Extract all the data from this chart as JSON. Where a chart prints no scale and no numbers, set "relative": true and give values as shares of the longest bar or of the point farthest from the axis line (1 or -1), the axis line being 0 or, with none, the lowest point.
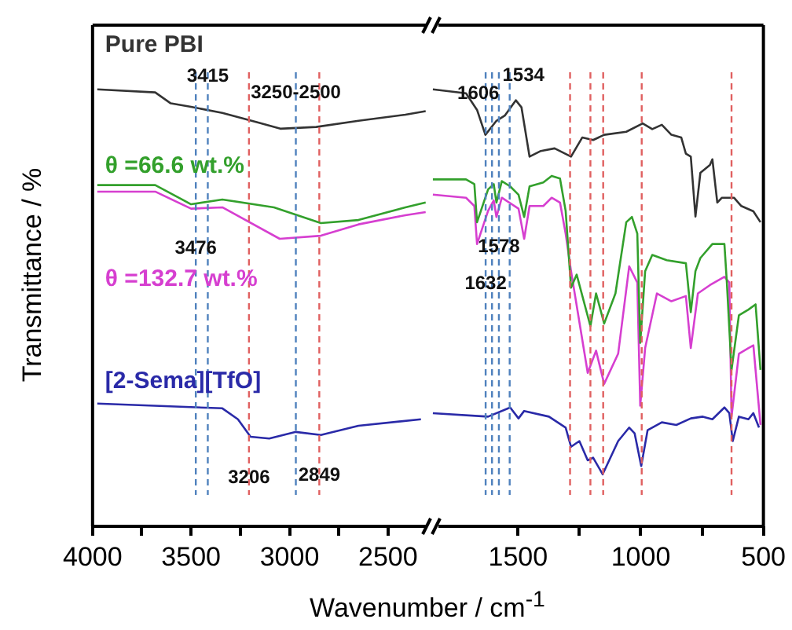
{
  "chart_data": [
    {
      "type": "line",
      "relative": true,
      "xlabel": "Wavenumber / cm$^{-1}$",
      "ylabel": "Transmittance / %",
      "xlim": [
        4000,
        2300
      ],
      "xticks": [
        4000,
        {
          "value": 3750,
          "label": null
        },
        3500,
        {
          "value": 3250,
          "label": null
        },
        3000,
        {
          "value": 2750,
          "label": null
        },
        2500
      ],
      "series": [
        {
          "name": "Pure PBI",
          "color": "#333333",
          "x": [
            3976,
            3682,
            3603,
            3500,
            3341,
            3159,
            3047,
            2865,
            2650,
            2412,
            2309
          ],
          "values": [
            1.0,
            0.993,
            0.968,
            0.96,
            0.946,
            0.924,
            0.91,
            0.914,
            0.928,
            0.942,
            0.95
          ]
        },
        {
          "name": "θ =66.6 wt.%",
          "color": "#33a02c",
          "x": [
            3976,
            3682,
            3500,
            3341,
            3079,
            2841,
            2650,
            2412,
            2309
          ],
          "values": [
            0.781,
            0.781,
            0.737,
            0.748,
            0.73,
            0.694,
            0.701,
            0.73,
            0.741
          ]
        },
        {
          "name": "θ =132.7 wt.%",
          "color": "#d63fd0",
          "x": [
            3976,
            3682,
            3500,
            3341,
            3050,
            2841,
            2650,
            2412,
            2309
          ],
          "values": [
            0.766,
            0.766,
            0.727,
            0.73,
            0.658,
            0.665,
            0.691,
            0.712,
            0.719
          ]
        },
        {
          "name": "[2-Sema][TfO]",
          "color": "#2a2aa8",
          "x": [
            3976,
            3341,
            3262,
            3198,
            3103,
            2968,
            2841,
            2650,
            2333
          ],
          "values": [
            0.281,
            0.27,
            0.245,
            0.205,
            0.201,
            0.216,
            0.209,
            0.23,
            0.245
          ]
        }
      ],
      "annotations": [
        {
          "text": "3415",
          "x": 3415,
          "y": 0.95
        },
        {
          "text": "3250-2500",
          "x": 2968,
          "y": 0.912
        },
        {
          "text": "3476",
          "x": 3476,
          "y": 0.73
        },
        {
          "text": "3206",
          "x": 3206,
          "y": 0.205
        },
        {
          "text": "2849",
          "x": 2849,
          "y": 0.209
        }
      ],
      "ref_lines": [
        {
          "axis": "x",
          "value": 3415,
          "color": "#4f81bd",
          "line_style": "dashed"
        },
        {
          "axis": "x",
          "value": 2968,
          "color": "#4f81bd",
          "line_style": "dashed"
        },
        {
          "axis": "x",
          "value": 3476,
          "color": "#4f81bd",
          "line_style": "dashed"
        },
        {
          "axis": "x",
          "value": 3206,
          "color": "#e06060",
          "line_style": "dashed"
        },
        {
          "axis": "x",
          "value": 2849,
          "color": "#e06060",
          "line_style": "dashed"
        }
      ]
    },
    {
      "type": "line",
      "relative": true,
      "xlim": [
        1850,
        500
      ],
      "xticks": [
        1500,
        {
          "value": 1250,
          "label": null
        },
        1000,
        {
          "value": 750,
          "label": null
        },
        500
      ],
      "series": [
        {
          "color": "#333333",
          "x": [
            1847,
            1712,
            1667,
            1633,
            1588,
            1554,
            1509,
            1486,
            1453,
            1407,
            1351,
            1284,
            1238,
            1194,
            1149,
            1059,
            992,
            953,
            914,
            875,
            835,
            816,
            796,
            777,
            757,
            718,
            708,
            688,
            669,
            620,
            590,
            541,
            512
          ],
          "values": [
            1.0,
            0.991,
            0.953,
            0.896,
            0.928,
            0.94,
            0.975,
            0.959,
            0.846,
            0.859,
            0.865,
            0.846,
            0.89,
            0.884,
            0.896,
            0.903,
            0.922,
            0.909,
            0.919,
            0.896,
            0.89,
            0.853,
            0.846,
            0.709,
            0.809,
            0.827,
            0.84,
            0.741,
            0.752,
            0.752,
            0.733,
            0.721,
            0.696
          ]
        },
        {
          "color": "#33a02c",
          "x": [
            1847,
            1712,
            1678,
            1667,
            1622,
            1599,
            1588,
            1566,
            1532,
            1498,
            1475,
            1453,
            1397,
            1363,
            1329,
            1306,
            1284,
            1261,
            1205,
            1182,
            1149,
            1103,
            1059,
            1036,
            1014,
            1002,
            982,
            953,
            894,
            816,
            796,
            777,
            757,
            708,
            659,
            649,
            630,
            600,
            561,
            532,
            512
          ],
          "values": [
            0.794,
            0.794,
            0.783,
            0.696,
            0.771,
            0.783,
            0.741,
            0.79,
            0.778,
            0.759,
            0.708,
            0.778,
            0.787,
            0.802,
            0.796,
            0.722,
            0.546,
            0.576,
            0.458,
            0.533,
            0.464,
            0.533,
            0.696,
            0.708,
            0.67,
            0.42,
            0.584,
            0.621,
            0.609,
            0.602,
            0.49,
            0.584,
            0.614,
            0.646,
            0.646,
            0.558,
            0.358,
            0.483,
            0.496,
            0.508,
            0.358
          ]
        },
        {
          "color": "#d63fd0",
          "x": [
            1847,
            1712,
            1678,
            1667,
            1622,
            1599,
            1588,
            1566,
            1498,
            1475,
            1453,
            1397,
            1363,
            1329,
            1306,
            1284,
            1216,
            1182,
            1149,
            1092,
            1047,
            1014,
            1002,
            982,
            934,
            875,
            816,
            796,
            767,
            718,
            659,
            639,
            630,
            600,
            561,
            541,
            512
          ],
          "values": [
            0.759,
            0.752,
            0.733,
            0.646,
            0.722,
            0.746,
            0.708,
            0.752,
            0.727,
            0.658,
            0.733,
            0.733,
            0.752,
            0.741,
            0.67,
            0.584,
            0.351,
            0.402,
            0.326,
            0.395,
            0.595,
            0.558,
            0.276,
            0.408,
            0.533,
            0.515,
            0.527,
            0.408,
            0.533,
            0.552,
            0.571,
            0.558,
            0.251,
            0.395,
            0.408,
            0.414,
            0.232
          ]
        },
        {
          "color": "#2a2aa8",
          "x": [
            1847,
            1622,
            1532,
            1498,
            1475,
            1374,
            1306,
            1284,
            1250,
            1216,
            1194,
            1155,
            1092,
            1047,
            1025,
            998,
            972,
            914,
            855,
            796,
            747,
            708,
            659,
            639,
            625,
            600,
            561,
            541,
            518
          ],
          "values": [
            0.259,
            0.251,
            0.272,
            0.247,
            0.264,
            0.251,
            0.226,
            0.182,
            0.195,
            0.151,
            0.157,
            0.119,
            0.195,
            0.226,
            0.213,
            0.138,
            0.22,
            0.238,
            0.232,
            0.247,
            0.251,
            0.245,
            0.272,
            0.259,
            0.195,
            0.251,
            0.245,
            0.259,
            0.226
          ]
        }
      ],
      "annotations": [
        {
          "text": "1606",
          "x": 1606,
          "y": 0.91
        },
        {
          "text": "1534",
          "x": 1534,
          "y": 0.952
        },
        {
          "text": "1632",
          "x": 1632,
          "y": 0.649
        },
        {
          "text": "1578",
          "x": 1578,
          "y": 0.732
        }
      ],
      "ref_lines": [
        {
          "axis": "x",
          "value": 1606,
          "color": "#4f81bd",
          "line_style": "dashed"
        },
        {
          "axis": "x",
          "value": 1534,
          "color": "#4f81bd",
          "line_style": "dashed"
        },
        {
          "axis": "x",
          "value": 1632,
          "color": "#4f81bd",
          "line_style": "dashed"
        },
        {
          "axis": "x",
          "value": 1578,
          "color": "#4f81bd",
          "line_style": "dashed"
        },
        {
          "axis": "x",
          "value": 1288,
          "color": "#e06060",
          "line_style": "dashed"
        },
        {
          "axis": "x",
          "value": 1205,
          "color": "#e06060",
          "line_style": "dashed"
        },
        {
          "axis": "x",
          "value": 1153,
          "color": "#e06060",
          "line_style": "dashed"
        },
        {
          "axis": "x",
          "value": 996,
          "color": "#e06060",
          "line_style": "dashed"
        },
        {
          "axis": "x",
          "value": 630,
          "color": "#e06060",
          "line_style": "dashed"
        }
      ]
    }
  ]
}
